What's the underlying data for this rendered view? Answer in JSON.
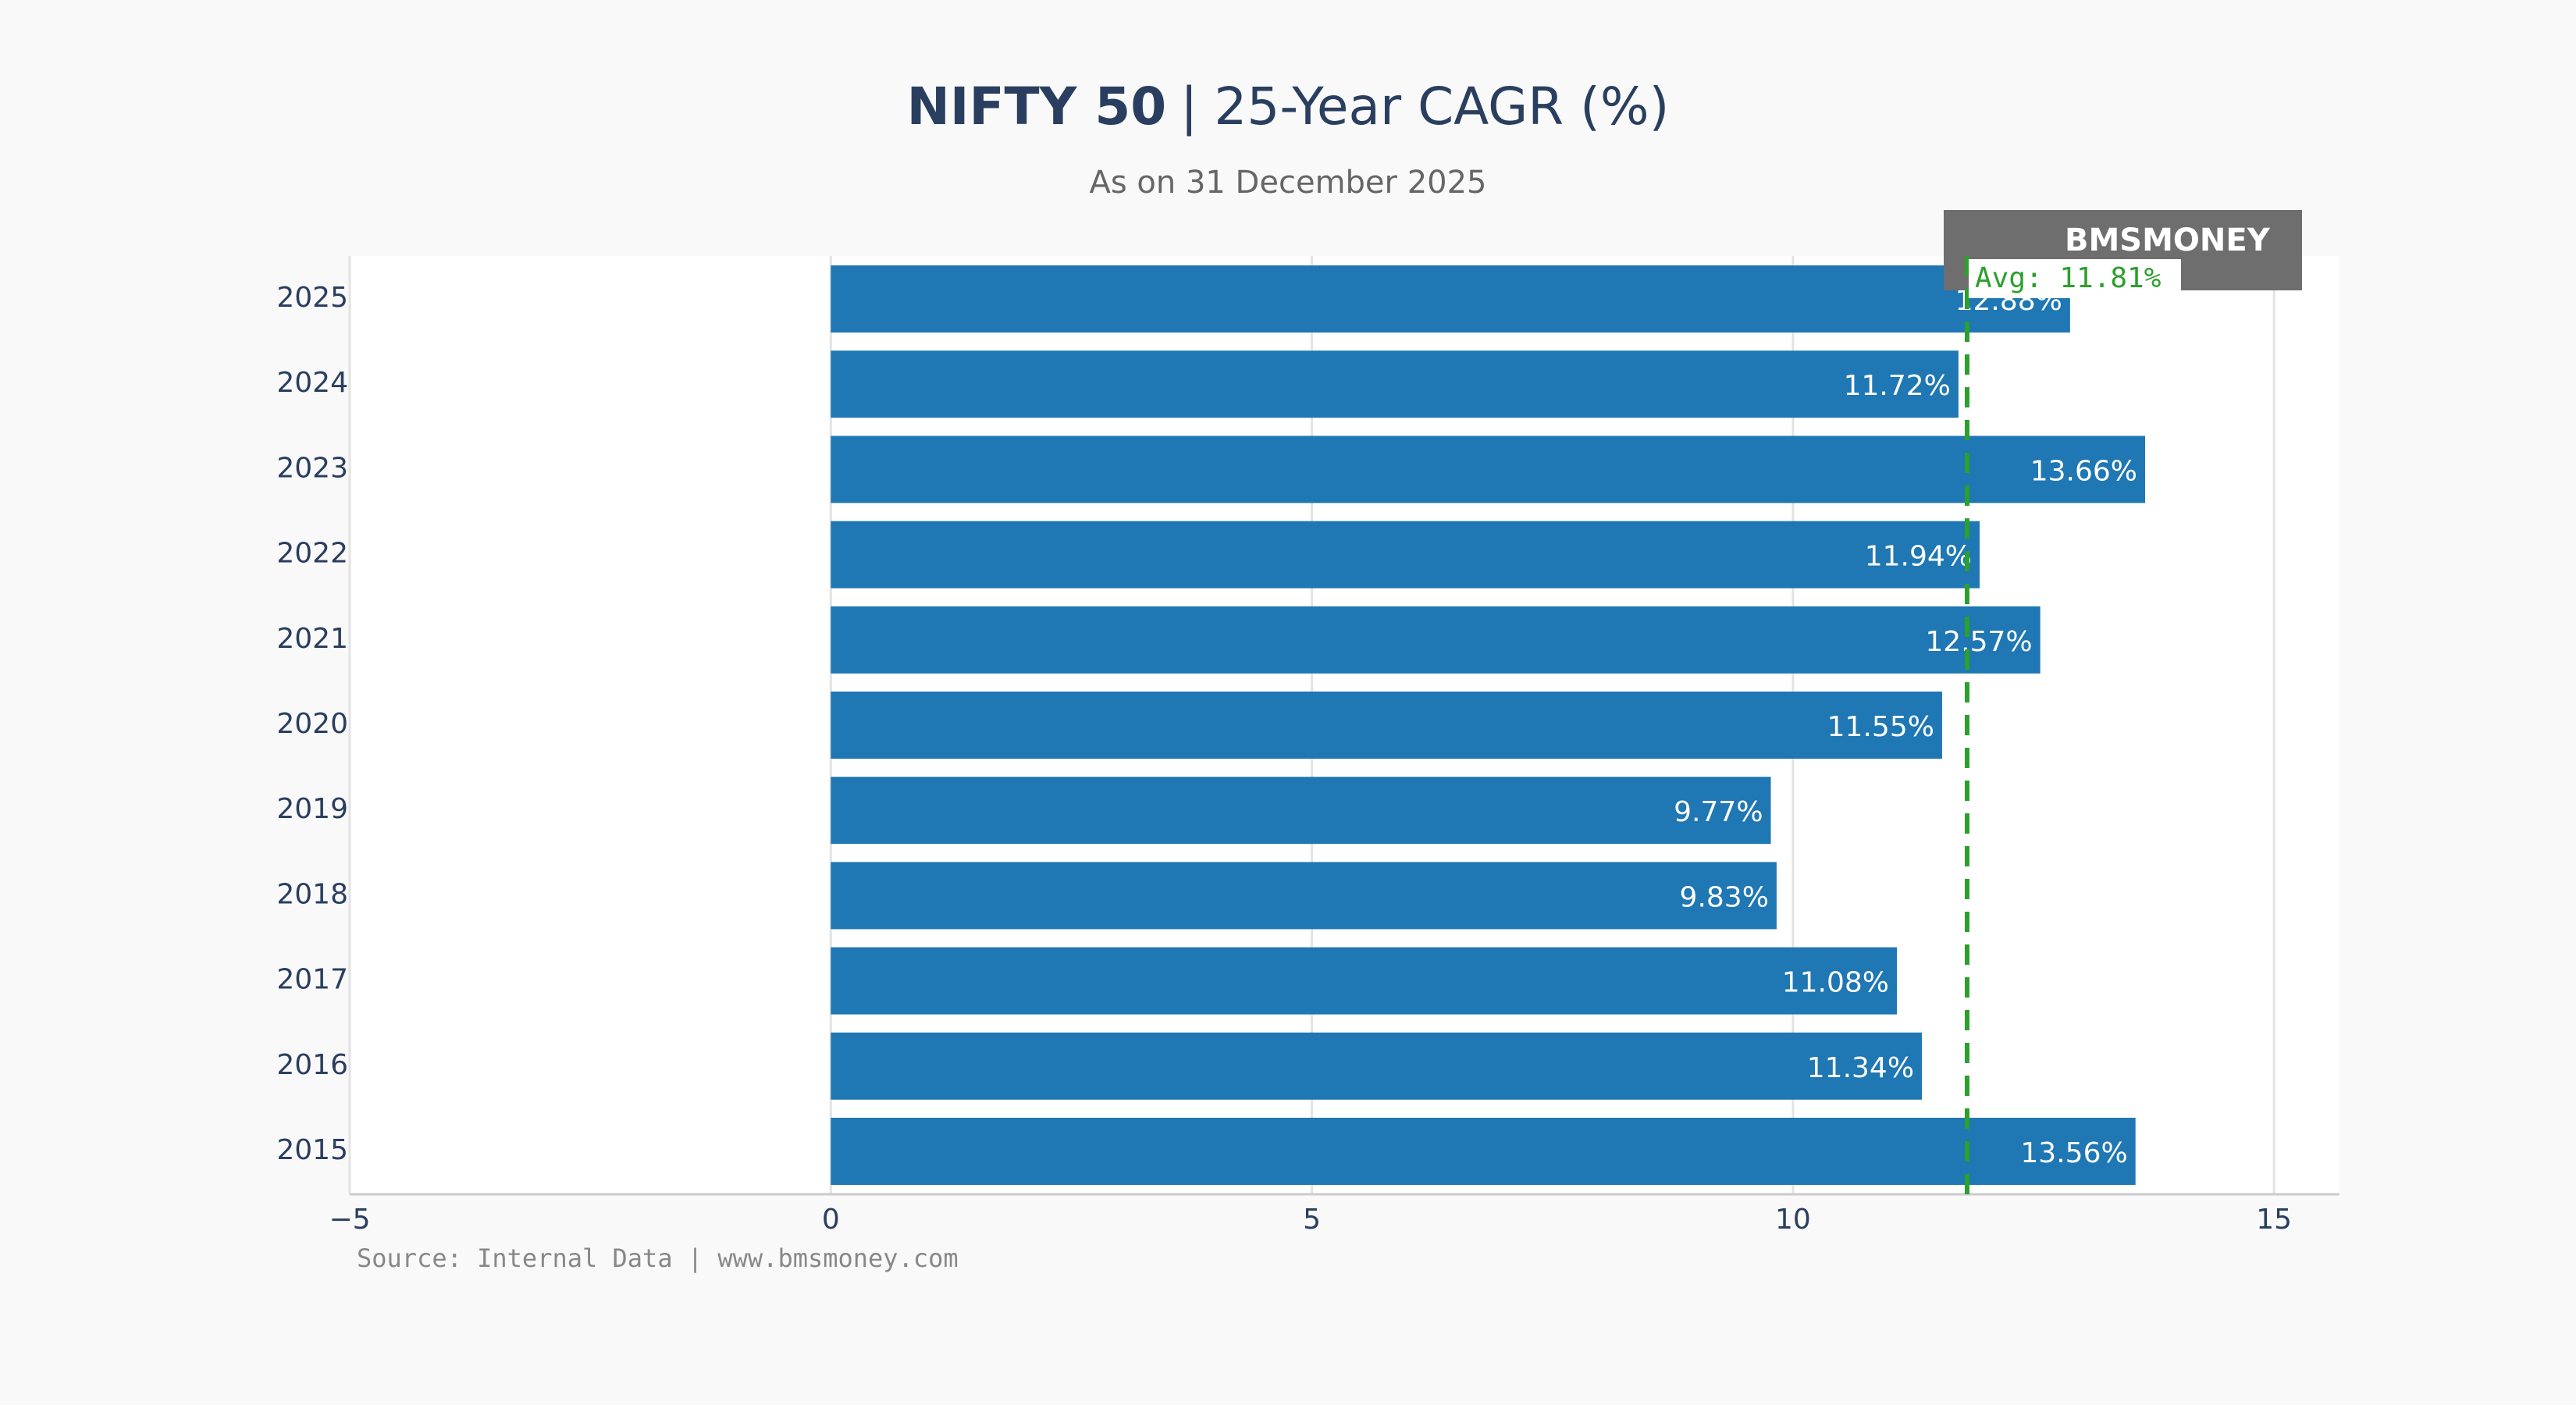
{
  "chart_data": {
    "type": "barh",
    "title": "NIFTY 50",
    "title_suffix": "| 25-Year CAGR (%)",
    "subtitle": "As on 31 December 2025",
    "source": "Source: Internal Data | www.bmsmoney.com",
    "logo": "BMSMONEY",
    "categories": [
      "2025",
      "2024",
      "2023",
      "2022",
      "2021",
      "2020",
      "2019",
      "2018",
      "2017",
      "2016",
      "2015"
    ],
    "values": [
      12.88,
      11.72,
      13.66,
      11.94,
      12.57,
      11.55,
      9.77,
      9.83,
      11.08,
      11.34,
      13.56
    ],
    "value_labels": [
      "12.88%",
      "11.72%",
      "13.66%",
      "11.94%",
      "12.57%",
      "11.55%",
      "9.77%",
      "9.83%",
      "11.08%",
      "11.34%",
      "13.56%"
    ],
    "color": "#1f77b4",
    "average": {
      "value": 11.81,
      "label": "Avg: 11.81%",
      "color": "#2ca02c"
    },
    "xlim": [
      -5,
      15.68
    ],
    "xticks": [
      {
        "value": -5,
        "label": "−5"
      },
      0,
      5,
      10,
      15
    ],
    "grid": true
  }
}
